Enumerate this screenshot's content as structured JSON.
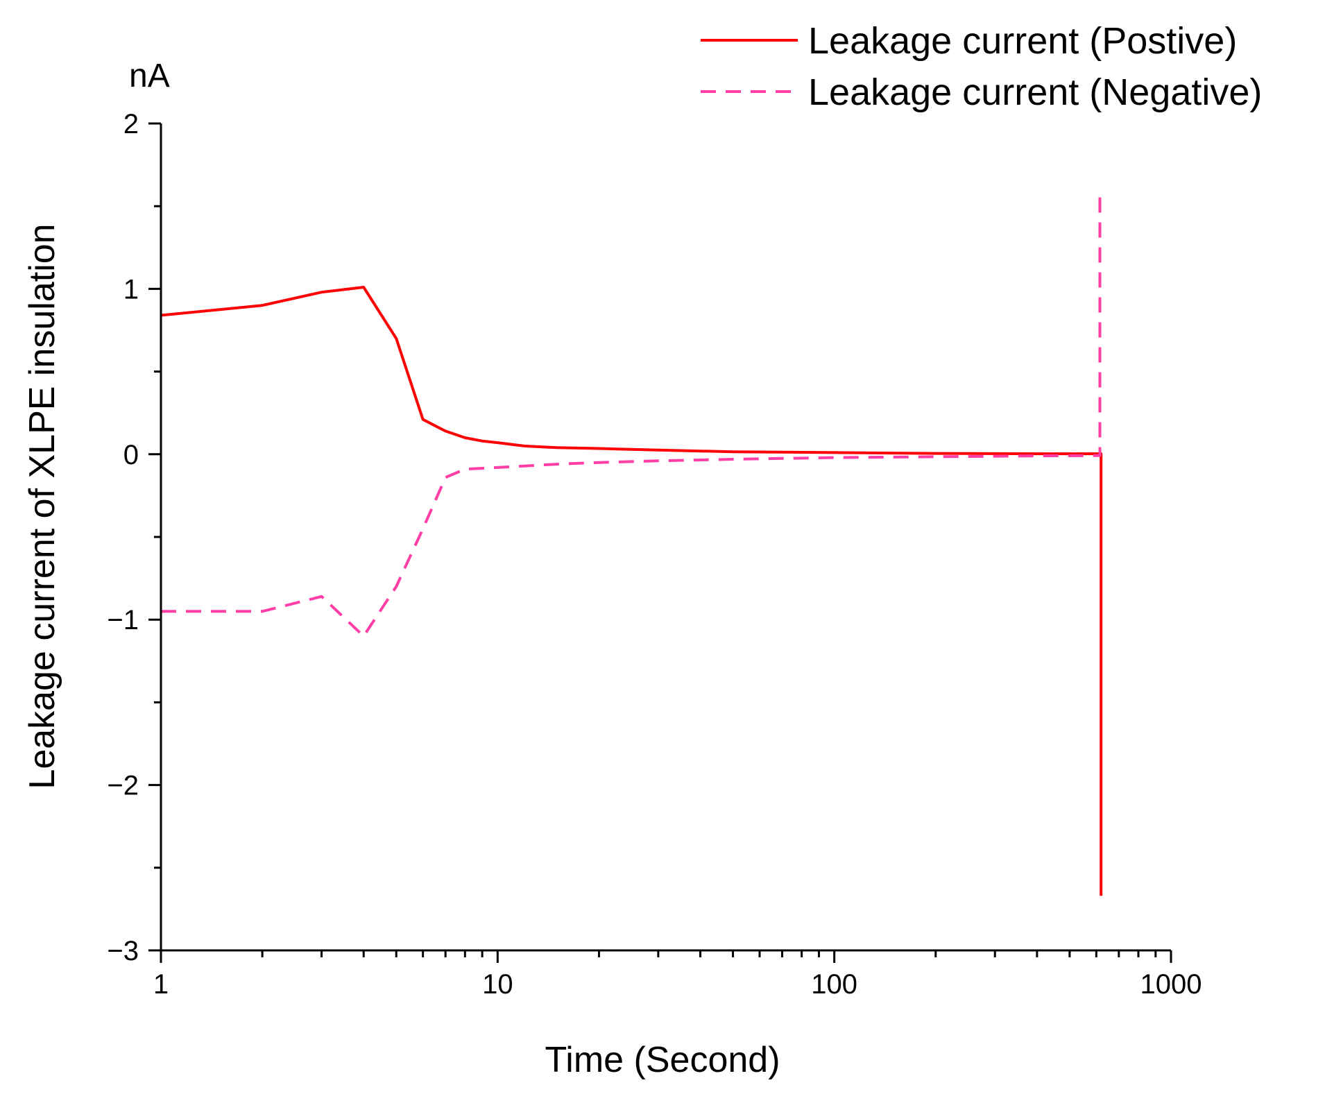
{
  "chart_data": {
    "type": "line",
    "title": "",
    "xlabel": "Time (Second)",
    "ylabel": "Leakage current of XLPE insulation",
    "y_unit": "nA",
    "x_scale": "log",
    "xlim": [
      1,
      1000
    ],
    "ylim": [
      -3,
      2
    ],
    "x_ticks": [
      1,
      10,
      100,
      1000
    ],
    "x_tick_labels": [
      "1",
      "10",
      "100",
      "1000"
    ],
    "y_ticks": [
      -3,
      -2,
      -1,
      0,
      1,
      2
    ],
    "y_tick_labels": [
      "−3",
      "−2",
      "−1",
      "0",
      "1",
      "2"
    ],
    "legend_position": "top-right",
    "grid": false,
    "series": [
      {
        "name": "Leakage current (Postive)",
        "color": "#ff0000",
        "dash": "solid",
        "x": [
          1,
          2,
          3,
          4,
          5,
          6,
          7,
          8,
          9,
          10,
          12,
          15,
          20,
          30,
          50,
          100,
          200,
          400,
          620,
          620
        ],
        "y": [
          0.84,
          0.9,
          0.98,
          1.01,
          0.7,
          0.21,
          0.14,
          0.1,
          0.08,
          0.07,
          0.05,
          0.04,
          0.035,
          0.025,
          0.015,
          0.01,
          0.005,
          0.003,
          0.003,
          -2.67
        ]
      },
      {
        "name": "Leakage current (Negative)",
        "color": "#ff3fa6",
        "dash": "dashed",
        "x": [
          1,
          2,
          3,
          4,
          5,
          6,
          7,
          8,
          10,
          15,
          20,
          30,
          50,
          100,
          200,
          400,
          615,
          615
        ],
        "y": [
          -0.95,
          -0.95,
          -0.86,
          -1.1,
          -0.8,
          -0.45,
          -0.14,
          -0.09,
          -0.08,
          -0.06,
          -0.05,
          -0.04,
          -0.03,
          -0.02,
          -0.015,
          -0.01,
          -0.008,
          1.6
        ]
      }
    ]
  }
}
